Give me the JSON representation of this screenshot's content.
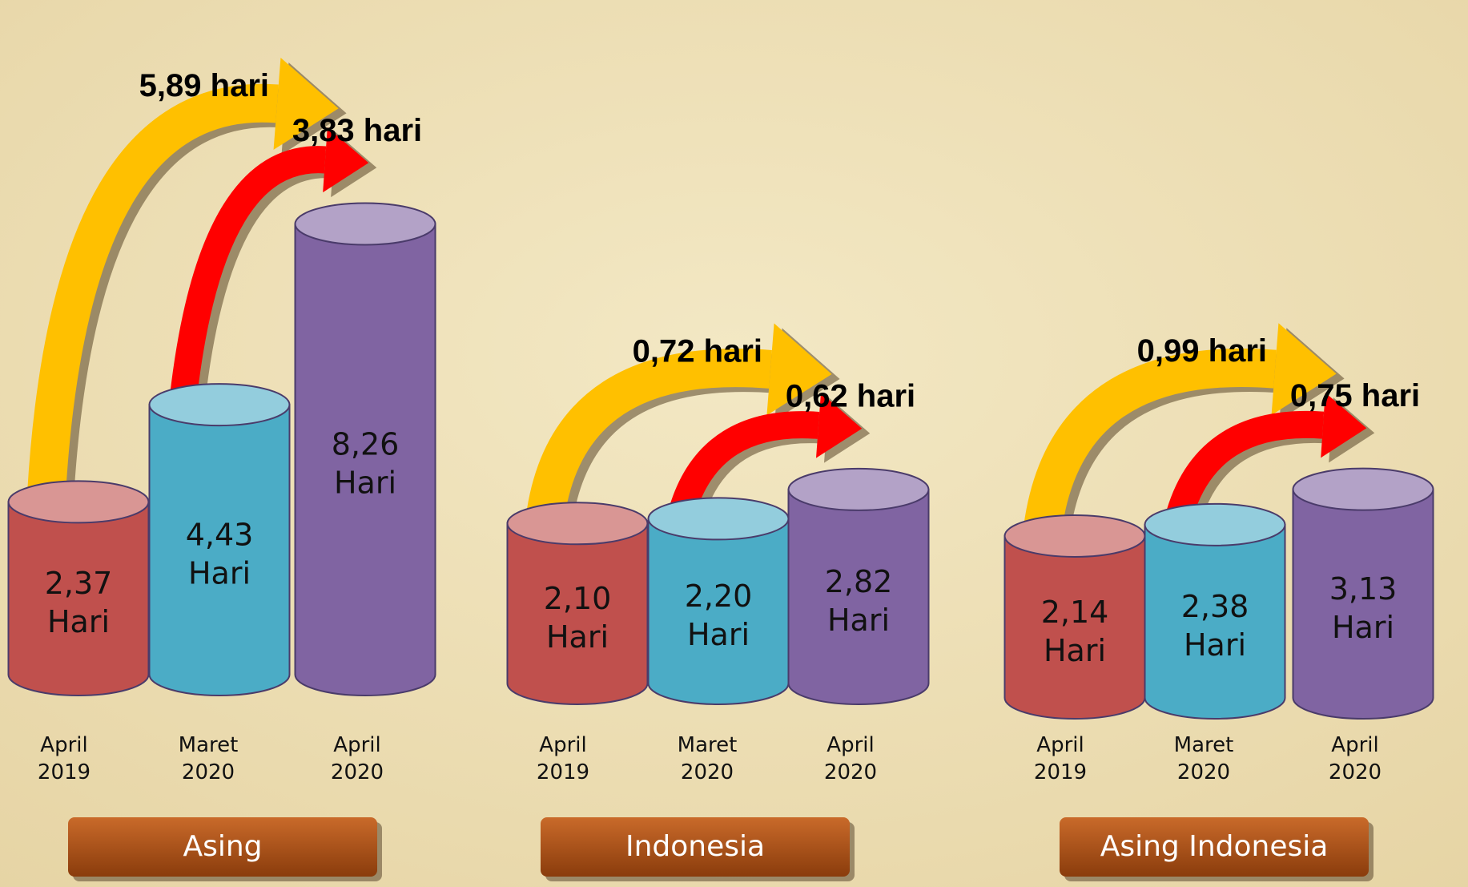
{
  "chart_data": [
    {
      "type": "bar",
      "title": "Asing",
      "categories": [
        "April 2019",
        "Maret 2020",
        "April 2020"
      ],
      "values": [
        2.37,
        4.43,
        8.26
      ],
      "value_labels": [
        "2,37 Hari",
        "4,43 Hari",
        "8,26 Hari"
      ],
      "colors": [
        "#c0504d",
        "#4bacc6",
        "#8064a2"
      ],
      "annotations": [
        {
          "text": "5,89 hari",
          "color": "#ffc000"
        },
        {
          "text": "3,83 hari",
          "color": "#ff0000"
        }
      ]
    },
    {
      "type": "bar",
      "title": "Indonesia",
      "categories": [
        "April 2019",
        "Maret 2020",
        "April 2020"
      ],
      "values": [
        2.1,
        2.2,
        2.82
      ],
      "value_labels": [
        "2,10 Hari",
        "2,20 Hari",
        "2,82 Hari"
      ],
      "colors": [
        "#c0504d",
        "#4bacc6",
        "#8064a2"
      ],
      "annotations": [
        {
          "text": "0,72 hari",
          "color": "#ffc000"
        },
        {
          "text": "0,62 hari",
          "color": "#ff0000"
        }
      ]
    },
    {
      "type": "bar",
      "title": "Asing Indonesia",
      "categories": [
        "April 2019",
        "Maret 2020",
        "April 2020"
      ],
      "values": [
        2.14,
        2.38,
        3.13
      ],
      "value_labels": [
        "2,14 Hari",
        "2,38 Hari",
        "3,13 Hari"
      ],
      "colors": [
        "#c0504d",
        "#4bacc6",
        "#8064a2"
      ],
      "annotations": [
        {
          "text": "0,99 hari",
          "color": "#ffc000"
        },
        {
          "text": "0,75 hari",
          "color": "#ff0000"
        }
      ]
    }
  ]
}
